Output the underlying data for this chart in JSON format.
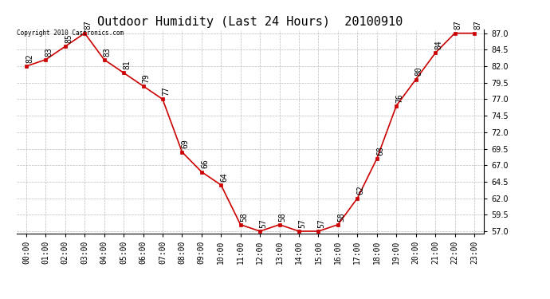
{
  "title": "Outdoor Humidity (Last 24 Hours)  20100910",
  "copyright": "Copyright 2010 Castronics.com",
  "x_labels": [
    "00:00",
    "01:00",
    "02:00",
    "03:00",
    "04:00",
    "05:00",
    "06:00",
    "07:00",
    "08:00",
    "09:00",
    "10:00",
    "11:00",
    "12:00",
    "13:00",
    "14:00",
    "15:00",
    "16:00",
    "17:00",
    "18:00",
    "19:00",
    "20:00",
    "21:00",
    "22:00",
    "23:00"
  ],
  "hours": [
    0,
    1,
    2,
    3,
    4,
    5,
    6,
    7,
    8,
    9,
    10,
    11,
    12,
    13,
    14,
    15,
    16,
    17,
    18,
    19,
    20,
    21,
    22,
    23
  ],
  "values": [
    82,
    83,
    85,
    87,
    83,
    81,
    79,
    77,
    69,
    66,
    64,
    58,
    57,
    58,
    57,
    57,
    58,
    62,
    68,
    76,
    80,
    84,
    87,
    87
  ],
  "ylim_min": 57.0,
  "ylim_max": 87.0,
  "ytick_start": 57.0,
  "ytick_end": 87.0,
  "ytick_step": 2.5,
  "line_color": "#cc0000",
  "marker_color": "#cc0000",
  "marker_face": "#cc0000",
  "background_color": "#ffffff",
  "grid_color": "#bbbbbb",
  "title_fontsize": 11,
  "label_fontsize": 7,
  "annotation_fontsize": 7
}
